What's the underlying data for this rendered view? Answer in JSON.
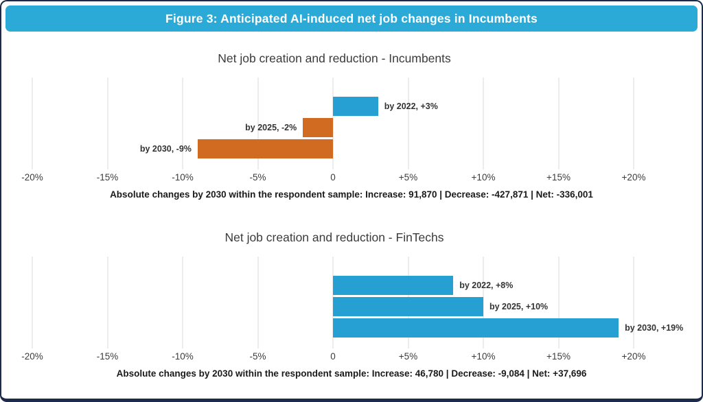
{
  "header": {
    "title": "Figure 3: Anticipated AI-induced net job changes in Incumbents"
  },
  "colors": {
    "header_bg": "#2BAAD8",
    "frame_border": "#1C2B4A",
    "gridline": "#D9D9D9",
    "positive_blue": "#269FD3",
    "negative_orange": "#D16B21"
  },
  "chart_data": [
    {
      "type": "bar",
      "orientation": "horizontal",
      "title": "Net job creation and reduction - Incumbents",
      "categories": [
        "by 2022",
        "by 2025",
        "by 2030"
      ],
      "values": [
        3,
        -2,
        -9
      ],
      "labels": [
        "by 2022, +3%",
        "by 2025, -2%",
        "by 2030, -9%"
      ],
      "bar_colors": [
        "#269FD3",
        "#D16B21",
        "#D16B21"
      ],
      "x_tick_values": [
        -20,
        -15,
        -10,
        -5,
        0,
        5,
        10,
        15,
        20
      ],
      "x_ticks": [
        "-20%",
        "-15%",
        "-10%",
        "-5%",
        "0",
        "+5%",
        "+10%",
        "+15%",
        "+20%"
      ],
      "xlim": [
        -20,
        20
      ],
      "grid": true,
      "legend": "none",
      "caption": "Absolute changes by 2030 within the respondent sample: Increase: 91,870 | Decrease: -427,871 | Net: -336,001"
    },
    {
      "type": "bar",
      "orientation": "horizontal",
      "title": "Net job creation and reduction - FinTechs",
      "categories": [
        "by 2022",
        "by 2025",
        "by 2030"
      ],
      "values": [
        8,
        10,
        19
      ],
      "labels": [
        "by 2022, +8%",
        "by 2025, +10%",
        "by 2030, +19%"
      ],
      "bar_colors": [
        "#269FD3",
        "#269FD3",
        "#269FD3"
      ],
      "x_tick_values": [
        -20,
        -15,
        -10,
        -5,
        0,
        5,
        10,
        15,
        20
      ],
      "x_ticks": [
        "-20%",
        "-15%",
        "-10%",
        "-5%",
        "0",
        "+5%",
        "+10%",
        "+15%",
        "+20%"
      ],
      "xlim": [
        -20,
        20
      ],
      "grid": true,
      "legend": "none",
      "caption": "Absolute changes by 2030 within the respondent sample:  Increase: 46,780 | Decrease: -9,084 | Net: +37,696"
    }
  ]
}
